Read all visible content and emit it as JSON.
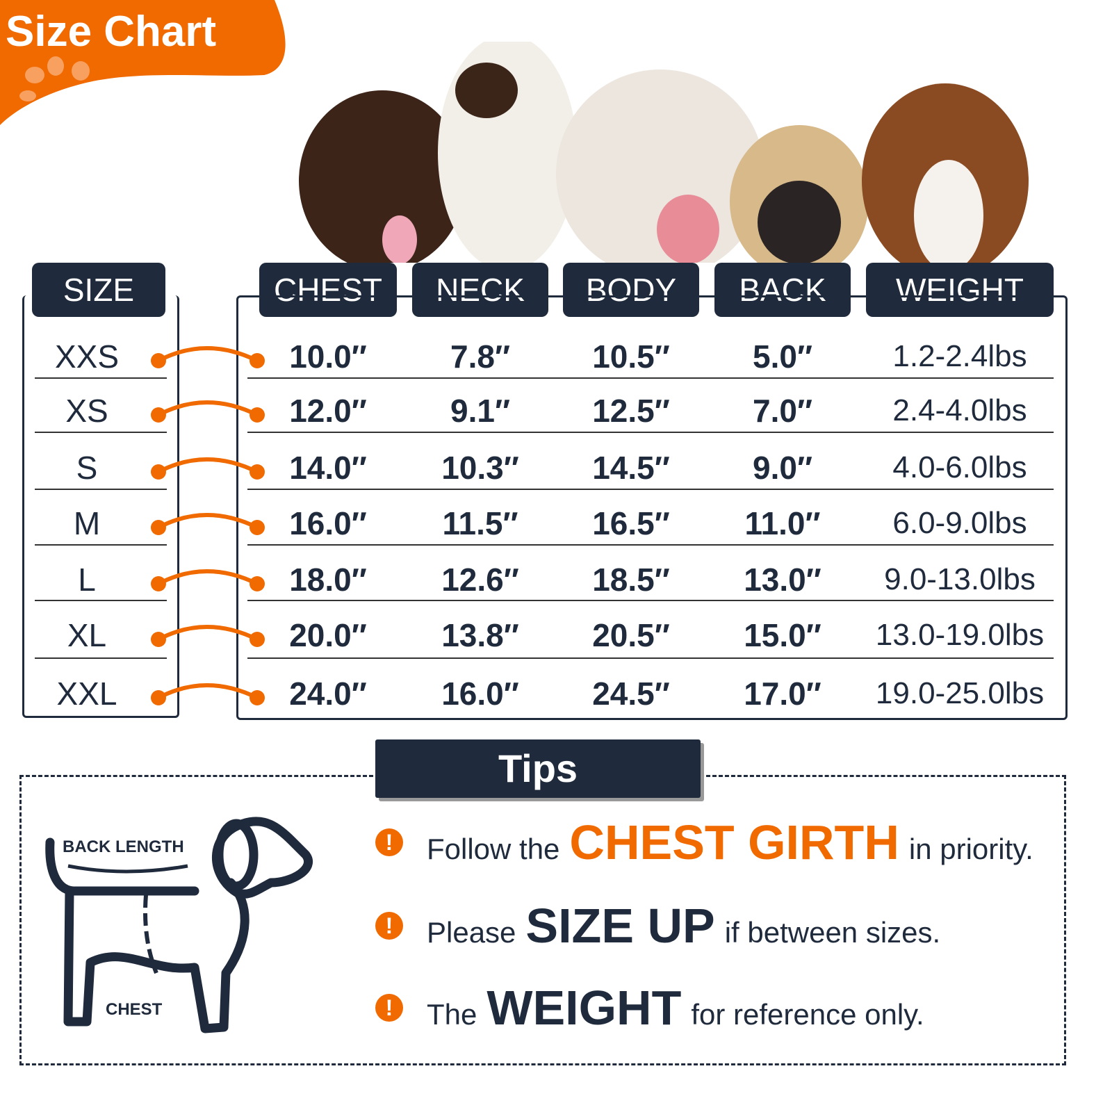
{
  "title": "Size Chart",
  "colors": {
    "accent": "#f06a00",
    "navy": "#1f2b3c"
  },
  "headers": {
    "size": "SIZE",
    "columns": [
      "CHEST",
      "NECK",
      "BODY",
      "BACK",
      "WEIGHT"
    ]
  },
  "rows": [
    {
      "size": "XXS",
      "values": [
        "10.0″",
        "7.8″",
        "10.5″",
        "5.0″",
        "1.2-2.4lbs"
      ]
    },
    {
      "size": "XS",
      "values": [
        "12.0″",
        "9.1″",
        "12.5″",
        "7.0″",
        "2.4-4.0lbs"
      ]
    },
    {
      "size": "S",
      "values": [
        "14.0″",
        "10.3″",
        "14.5″",
        "9.0″",
        "4.0-6.0lbs"
      ]
    },
    {
      "size": "M",
      "values": [
        "16.0″",
        "11.5″",
        "16.5″",
        "11.0″",
        "6.0-9.0lbs"
      ]
    },
    {
      "size": "L",
      "values": [
        "18.0″",
        "12.6″",
        "18.5″",
        "13.0″",
        "9.0-13.0lbs"
      ]
    },
    {
      "size": "XL",
      "values": [
        "20.0″",
        "13.8″",
        "20.5″",
        "15.0″",
        "13.0-19.0lbs"
      ]
    },
    {
      "size": "XXL",
      "values": [
        "24.0″",
        "16.0″",
        "24.5″",
        "17.0″",
        "19.0-25.0lbs"
      ]
    }
  ],
  "tips": {
    "title": "Tips",
    "items": [
      {
        "pre": "Follow the",
        "emph": "CHEST GIRTH",
        "post": "in priority.",
        "emph_color": "#f06a00"
      },
      {
        "pre": "Please",
        "emph": "SIZE UP",
        "post": "if between sizes.",
        "emph_color": "#1f2b3c"
      },
      {
        "pre": "The",
        "emph": "WEIGHT",
        "post": "for reference only.",
        "emph_color": "#1f2b3c"
      }
    ]
  },
  "diagram": {
    "back_label": "BACK LENGTH",
    "chest_label": "CHEST"
  }
}
